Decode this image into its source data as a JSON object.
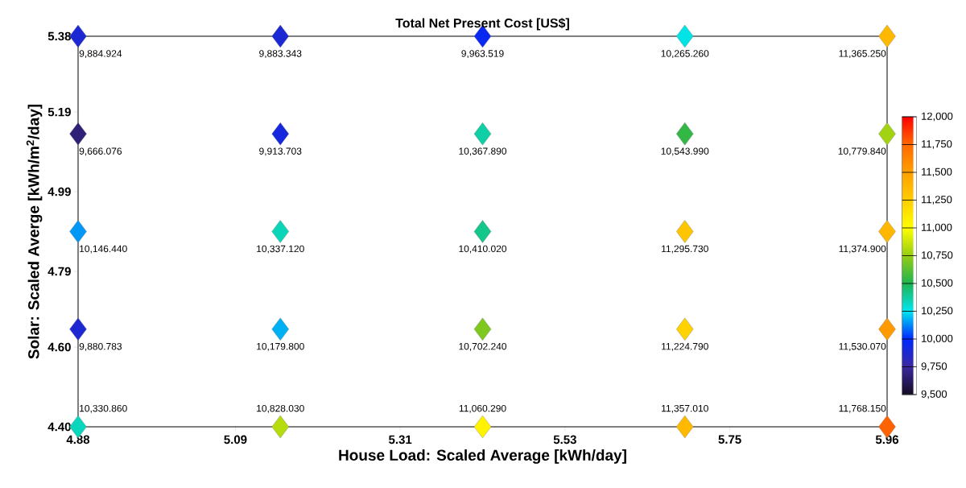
{
  "chart_data": {
    "type": "scatter",
    "title": "Total Net Present Cost [US$]",
    "xlabel": "House Load: Scaled Average [kWh/day]",
    "ylabel": "Solar: Scaled Averge [kWh/m$^{2}$/day]",
    "x": [
      4.88,
      5.15,
      5.42,
      5.69,
      5.96,
      4.88,
      5.15,
      5.42,
      5.69,
      5.96,
      4.88,
      5.15,
      5.42,
      5.69,
      5.96,
      4.88,
      5.15,
      5.42,
      5.69,
      5.96,
      4.88,
      5.15,
      5.42,
      5.69,
      5.96
    ],
    "values": [
      5.38,
      5.38,
      5.38,
      5.38,
      5.38,
      5.135,
      5.135,
      5.135,
      5.135,
      5.135,
      4.89,
      4.89,
      4.89,
      4.89,
      4.89,
      4.645,
      4.645,
      4.645,
      4.645,
      4.645,
      4.4,
      4.4,
      4.4,
      4.4,
      4.4
    ],
    "cvalues": [
      9884.924,
      9883.343,
      9963.519,
      10265.26,
      11365.25,
      9666.076,
      9913.703,
      10367.89,
      10543.99,
      10779.84,
      10146.44,
      10337.12,
      10410.02,
      11295.73,
      11374.9,
      9880.783,
      10179.8,
      10702.24,
      11224.79,
      11530.07,
      10330.86,
      10828.03,
      11060.29,
      11357.01,
      11768.15
    ],
    "annotations": [
      {
        "text": "9,884.924",
        "x": 4.88,
        "y": 5.38
      },
      {
        "text": "9,883.343",
        "x": 5.15,
        "y": 5.38
      },
      {
        "text": "9,963.519",
        "x": 5.42,
        "y": 5.38
      },
      {
        "text": "10,265.260",
        "x": 5.69,
        "y": 5.38
      },
      {
        "text": "11,365.250",
        "x": 5.96,
        "y": 5.38
      },
      {
        "text": "9,666.076",
        "x": 4.88,
        "y": 5.135
      },
      {
        "text": "9,913.703",
        "x": 5.15,
        "y": 5.135
      },
      {
        "text": "10,367.890",
        "x": 5.42,
        "y": 5.135
      },
      {
        "text": "10,543.990",
        "x": 5.69,
        "y": 5.135
      },
      {
        "text": "10,779.840",
        "x": 5.96,
        "y": 5.135
      },
      {
        "text": "10,146.440",
        "x": 4.88,
        "y": 4.89
      },
      {
        "text": "10,337.120",
        "x": 5.15,
        "y": 4.89
      },
      {
        "text": "10,410.020",
        "x": 5.42,
        "y": 4.89
      },
      {
        "text": "11,295.730",
        "x": 5.69,
        "y": 4.89
      },
      {
        "text": "11,374.900",
        "x": 5.96,
        "y": 4.89
      },
      {
        "text": "9,880.783",
        "x": 4.88,
        "y": 4.645
      },
      {
        "text": "10,179.800",
        "x": 5.15,
        "y": 4.645
      },
      {
        "text": "10,702.240",
        "x": 5.42,
        "y": 4.645
      },
      {
        "text": "11,224.790",
        "x": 5.69,
        "y": 4.645
      },
      {
        "text": "11,530.070",
        "x": 5.96,
        "y": 4.645
      },
      {
        "text": "10,330.860",
        "x": 4.88,
        "y": 4.4
      },
      {
        "text": "10,828.030",
        "x": 5.15,
        "y": 4.4
      },
      {
        "text": "11,060.290",
        "x": 5.42,
        "y": 4.4
      },
      {
        "text": "11,357.010",
        "x": 5.69,
        "y": 4.4
      },
      {
        "text": "11,768.150",
        "x": 5.96,
        "y": 4.4
      }
    ],
    "marker": "diamond",
    "xlim": [
      4.88,
      5.96
    ],
    "xticks": [
      4.88,
      5.09,
      5.31,
      5.53,
      5.75,
      5.96
    ],
    "ylim": [
      4.4,
      5.38
    ],
    "yticks": [
      {
        "value": 4.4,
        "label": "4.40"
      },
      {
        "value": 4.6,
        "label": "4.60"
      },
      4.79,
      4.99,
      5.19,
      5.38
    ],
    "clim": [
      9500,
      12000
    ],
    "cticks": [
      {
        "value": 9500,
        "label": "9,500"
      },
      {
        "value": 9750,
        "label": "9,750"
      },
      {
        "value": 10000,
        "label": "10,000"
      },
      {
        "value": 10250,
        "label": "10,250"
      },
      {
        "value": 10500,
        "label": "10,500"
      },
      {
        "value": 10750,
        "label": "10,750"
      },
      {
        "value": 11000,
        "label": "11,000"
      },
      {
        "value": 11250,
        "label": "11,250"
      },
      {
        "value": 11500,
        "label": "11,500"
      },
      {
        "value": 11750,
        "label": "11,750"
      },
      {
        "value": 12000,
        "label": "12,000"
      }
    ]
  }
}
